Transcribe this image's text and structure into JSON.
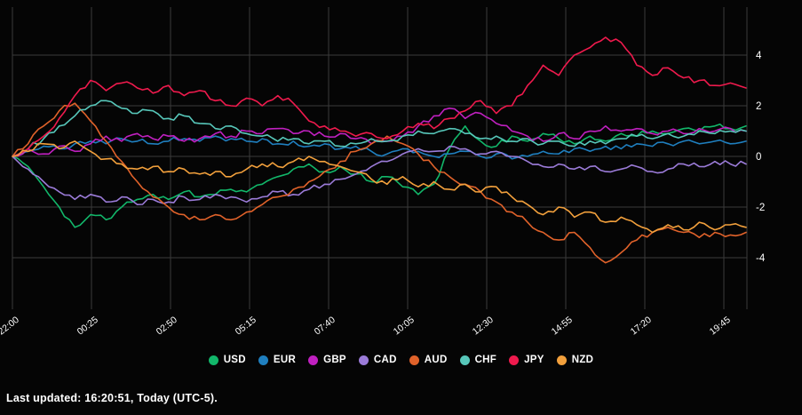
{
  "chart_data": {
    "type": "line",
    "title": "",
    "xlabel": "",
    "ylabel": "",
    "x_tick_labels": [
      "22:00",
      "00:25",
      "02:50",
      "05:15",
      "07:40",
      "10:05",
      "12:30",
      "14:55",
      "17:20",
      "19:45"
    ],
    "y_ticks": [
      4,
      2,
      0,
      -2,
      -4
    ],
    "ylim": [
      -5.9,
      5.9
    ],
    "grid": true,
    "grid_color": "#3a3a3a",
    "background": "#050505",
    "tick_label_color": "#ffffff",
    "legend_position": "bottom",
    "series": [
      {
        "name": "USD",
        "color": "#12b76a",
        "values": [
          0.0,
          -0.4,
          -1.2,
          -2.0,
          -2.8,
          -2.3,
          -2.5,
          -2.0,
          -1.7,
          -1.5,
          -1.7,
          -1.4,
          -1.6,
          -1.5,
          -1.3,
          -1.4,
          -1.1,
          -0.8,
          -0.5,
          -0.3,
          -0.6,
          -0.4,
          -0.7,
          -1.0,
          -0.8,
          -1.2,
          -1.5,
          -1.1,
          0.3,
          1.2,
          0.6,
          0.4,
          0.8,
          0.6,
          0.9,
          0.7,
          0.5,
          0.8,
          0.6,
          0.9,
          0.8,
          1.0,
          0.9,
          1.1,
          1.0,
          1.2,
          1.1,
          1.2
        ]
      },
      {
        "name": "EUR",
        "color": "#1f7fbf",
        "values": [
          0.0,
          0.2,
          0.4,
          0.3,
          0.5,
          0.6,
          0.5,
          0.7,
          0.6,
          0.5,
          0.6,
          0.7,
          0.6,
          0.8,
          0.7,
          0.6,
          0.7,
          0.5,
          0.6,
          0.4,
          0.5,
          0.3,
          0.4,
          0.2,
          0.1,
          0.3,
          0.2,
          0.0,
          0.1,
          0.2,
          0.0,
          0.1,
          -0.1,
          0.0,
          0.2,
          0.1,
          0.3,
          0.2,
          0.4,
          0.3,
          0.5,
          0.4,
          0.5,
          0.6,
          0.5,
          0.6,
          0.5,
          0.6
        ]
      },
      {
        "name": "GBP",
        "color": "#c020c0",
        "values": [
          0.0,
          0.3,
          0.1,
          0.4,
          0.2,
          0.5,
          0.8,
          0.6,
          0.9,
          0.7,
          0.8,
          0.6,
          0.7,
          0.9,
          0.8,
          1.0,
          0.9,
          1.1,
          0.9,
          1.0,
          0.8,
          0.9,
          0.7,
          0.5,
          0.6,
          0.8,
          1.2,
          1.6,
          1.9,
          1.5,
          1.7,
          1.3,
          1.0,
          0.8,
          0.6,
          0.9,
          0.7,
          1.0,
          1.2,
          1.0,
          1.1,
          0.9,
          1.0,
          0.9,
          1.1,
          1.0,
          1.1,
          1.0
        ]
      },
      {
        "name": "CAD",
        "color": "#9b7bd8",
        "values": [
          0.0,
          -0.5,
          -1.0,
          -1.4,
          -1.7,
          -1.5,
          -1.8,
          -1.6,
          -1.9,
          -1.7,
          -1.8,
          -1.6,
          -1.7,
          -1.5,
          -1.6,
          -1.8,
          -1.6,
          -1.4,
          -1.5,
          -1.3,
          -1.1,
          -0.9,
          -0.7,
          -0.4,
          -0.2,
          0.1,
          0.3,
          0.2,
          0.4,
          0.3,
          0.1,
          0.2,
          0.0,
          -0.2,
          -0.4,
          -0.3,
          -0.5,
          -0.4,
          -0.6,
          -0.5,
          -0.4,
          -0.6,
          -0.5,
          -0.3,
          -0.4,
          -0.2,
          -0.3,
          -0.3
        ]
      },
      {
        "name": "AUD",
        "color": "#e0622a",
        "values": [
          0.0,
          0.5,
          1.2,
          1.8,
          2.1,
          1.4,
          0.6,
          -0.2,
          -1.0,
          -1.6,
          -2.0,
          -2.3,
          -2.5,
          -2.3,
          -2.5,
          -2.2,
          -1.9,
          -1.6,
          -1.3,
          -1.0,
          -0.6,
          -0.2,
          0.2,
          0.5,
          0.8,
          0.5,
          0.1,
          -0.4,
          -0.8,
          -1.1,
          -1.4,
          -1.8,
          -2.2,
          -2.6,
          -3.0,
          -3.3,
          -3.0,
          -3.6,
          -4.2,
          -3.8,
          -3.3,
          -3.0,
          -2.8,
          -3.0,
          -3.2,
          -3.0,
          -3.1,
          -3.0
        ]
      },
      {
        "name": "CHF",
        "color": "#57c7ba",
        "values": [
          0.0,
          0.3,
          0.7,
          1.2,
          1.6,
          2.0,
          2.2,
          1.9,
          1.7,
          1.8,
          1.5,
          1.6,
          1.3,
          1.1,
          1.2,
          0.9,
          0.8,
          0.6,
          0.7,
          0.5,
          0.6,
          0.4,
          0.5,
          0.7,
          0.6,
          0.8,
          1.0,
          0.9,
          1.1,
          0.9,
          0.7,
          0.8,
          0.6,
          0.7,
          0.5,
          0.6,
          0.4,
          0.6,
          0.5,
          0.7,
          0.8,
          0.7,
          0.9,
          0.8,
          1.0,
          0.9,
          1.0,
          1.0
        ]
      },
      {
        "name": "JPY",
        "color": "#ef1a4d",
        "values": [
          0.0,
          0.3,
          0.8,
          1.5,
          2.4,
          3.0,
          2.6,
          2.9,
          2.7,
          2.5,
          2.8,
          2.4,
          2.6,
          2.2,
          2.0,
          2.3,
          2.0,
          2.4,
          2.1,
          1.4,
          1.2,
          1.0,
          0.8,
          0.9,
          0.7,
          1.0,
          1.3,
          1.1,
          1.5,
          1.8,
          2.2,
          1.7,
          2.0,
          2.8,
          3.6,
          3.2,
          4.0,
          4.3,
          4.7,
          4.5,
          3.6,
          3.2,
          3.5,
          3.1,
          3.0,
          2.8,
          2.9,
          2.7
        ]
      },
      {
        "name": "NZD",
        "color": "#f2a03c",
        "values": [
          0.0,
          0.2,
          0.5,
          0.3,
          0.6,
          0.2,
          -0.1,
          -0.3,
          -0.5,
          -0.4,
          -0.6,
          -0.5,
          -0.7,
          -0.6,
          -0.8,
          -0.5,
          -0.3,
          -0.4,
          -0.2,
          0.0,
          -0.2,
          -0.4,
          -0.6,
          -0.9,
          -1.1,
          -0.8,
          -1.2,
          -1.0,
          -1.3,
          -1.1,
          -1.4,
          -1.2,
          -1.6,
          -1.9,
          -2.3,
          -2.0,
          -2.4,
          -2.2,
          -2.6,
          -2.4,
          -2.7,
          -3.0,
          -2.7,
          -2.9,
          -2.6,
          -2.9,
          -2.7,
          -2.8
        ]
      }
    ]
  },
  "footer": {
    "last_updated": "Last updated: 16:20:51, Today (UTC-5)."
  }
}
